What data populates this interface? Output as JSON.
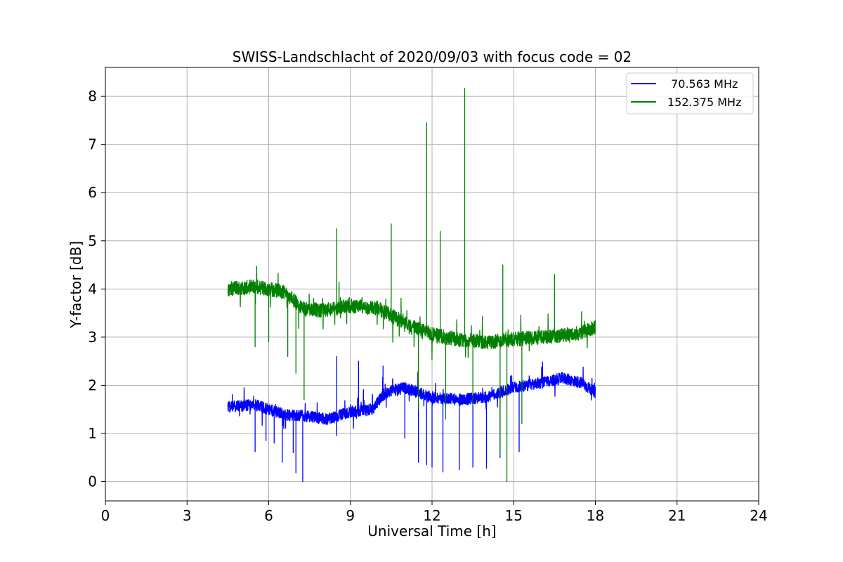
{
  "chart_data": {
    "type": "line",
    "title": "SWISS-Landschlacht of 2020/09/03 with focus code = 02",
    "xlabel": "Universal Time [h]",
    "ylabel": "Y-factor [dB]",
    "xlim": [
      0,
      24
    ],
    "ylim": [
      -0.4,
      8.6
    ],
    "xticks": [
      0,
      3,
      6,
      9,
      12,
      15,
      18,
      21,
      24
    ],
    "yticks": [
      0,
      1,
      2,
      3,
      4,
      5,
      6,
      7,
      8
    ],
    "xtick_labels": [
      "0",
      "3",
      "6",
      "9",
      "12",
      "15",
      "18",
      "21",
      "24"
    ],
    "ytick_labels": [
      "0",
      "1",
      "2",
      "3",
      "4",
      "5",
      "6",
      "7",
      "8"
    ],
    "grid": true,
    "legend_position": "top-right",
    "series": [
      {
        "name": " 70.563 MHz",
        "color": "#0000ff",
        "baseline": [
          [
            4.5,
            1.55
          ],
          [
            5.5,
            1.6
          ],
          [
            6.5,
            1.4
          ],
          [
            7.5,
            1.35
          ],
          [
            8.2,
            1.3
          ],
          [
            9.0,
            1.45
          ],
          [
            9.8,
            1.5
          ],
          [
            10.3,
            1.85
          ],
          [
            11.0,
            1.95
          ],
          [
            12.0,
            1.75
          ],
          [
            13.0,
            1.7
          ],
          [
            14.0,
            1.75
          ],
          [
            15.0,
            1.95
          ],
          [
            16.0,
            2.05
          ],
          [
            16.8,
            2.15
          ],
          [
            17.5,
            2.05
          ],
          [
            18.0,
            1.85
          ]
        ],
        "noise_amplitude": 0.12,
        "spikes": [
          [
            5.5,
            0.62
          ],
          [
            5.9,
            0.85
          ],
          [
            6.2,
            0.8
          ],
          [
            6.5,
            0.4
          ],
          [
            6.9,
            0.6
          ],
          [
            7.0,
            0.18
          ],
          [
            7.25,
            0.0
          ],
          [
            11.0,
            0.9
          ],
          [
            11.5,
            0.4
          ],
          [
            11.8,
            0.35
          ],
          [
            12.0,
            0.3
          ],
          [
            12.4,
            0.2
          ],
          [
            13.0,
            0.25
          ],
          [
            13.5,
            0.3
          ],
          [
            14.0,
            0.28
          ],
          [
            14.5,
            0.5
          ],
          [
            15.2,
            0.62
          ],
          [
            8.5,
            2.6
          ],
          [
            9.3,
            2.5
          ],
          [
            10.2,
            2.4
          ]
        ]
      },
      {
        "name": "152.375 MHz",
        "color": "#008000",
        "baseline": [
          [
            4.5,
            4.0
          ],
          [
            5.5,
            4.05
          ],
          [
            6.5,
            3.95
          ],
          [
            7.3,
            3.6
          ],
          [
            8.0,
            3.55
          ],
          [
            9.0,
            3.65
          ],
          [
            10.0,
            3.6
          ],
          [
            11.0,
            3.3
          ],
          [
            12.0,
            3.05
          ],
          [
            13.0,
            2.95
          ],
          [
            14.0,
            2.9
          ],
          [
            15.0,
            2.95
          ],
          [
            16.0,
            3.0
          ],
          [
            17.0,
            3.05
          ],
          [
            17.5,
            3.1
          ],
          [
            18.0,
            3.2
          ]
        ],
        "noise_amplitude": 0.15,
        "spikes": [
          [
            8.5,
            5.25
          ],
          [
            10.5,
            5.35
          ],
          [
            11.8,
            7.45
          ],
          [
            12.3,
            5.2
          ],
          [
            13.2,
            8.17
          ],
          [
            14.6,
            4.5
          ],
          [
            16.5,
            4.3
          ],
          [
            5.5,
            2.8
          ],
          [
            6.0,
            2.9
          ],
          [
            6.7,
            2.6
          ],
          [
            7.0,
            2.25
          ],
          [
            7.3,
            1.7
          ],
          [
            11.5,
            1.5
          ],
          [
            12.5,
            1.3
          ],
          [
            13.5,
            1.6
          ],
          [
            14.5,
            0.55
          ],
          [
            14.75,
            0.0
          ],
          [
            15.3,
            1.2
          ]
        ]
      }
    ]
  }
}
